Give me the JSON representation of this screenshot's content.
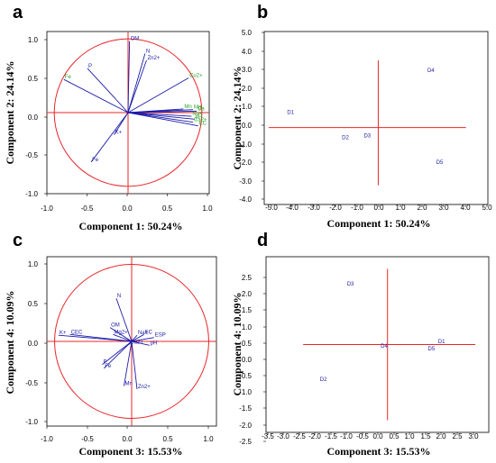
{
  "colors": {
    "circle": "#e8262a",
    "axes_cross": "#e8262a",
    "vector": "#1c1caa",
    "label_blue": "#1c1caa",
    "label_green": "#2aa52a",
    "frame": "#000000"
  },
  "chart_data": [
    {
      "panel": "a",
      "type": "scatter",
      "subtype": "loading-plot",
      "xlabel": "Component 1: 50.24%",
      "ylabel": "Component 2: 24.14%",
      "xlim": [
        -1.1,
        1.1
      ],
      "ylim": [
        -1.1,
        1.1
      ],
      "xticks": [
        "-1.0",
        "-0.5",
        "0.0",
        "0.5",
        "1.0"
      ],
      "yticks": [
        "1.0",
        "0.5",
        "0.0",
        "-0.5",
        "-1.0"
      ],
      "unit_circle": true,
      "points": [
        {
          "label": "OM",
          "x": 0.02,
          "y": 0.97,
          "color": "blue"
        },
        {
          "label": "N",
          "x": 0.23,
          "y": 0.8,
          "color": "blue"
        },
        {
          "label": "Zn2+",
          "x": 0.25,
          "y": 0.71,
          "color": "blue"
        },
        {
          "label": "P",
          "x": -0.55,
          "y": 0.6,
          "color": "blue"
        },
        {
          "label": "Fe",
          "x": -0.87,
          "y": 0.45,
          "color": "green"
        },
        {
          "label": "Cu2+",
          "x": 0.82,
          "y": 0.47,
          "color": "green"
        },
        {
          "label": "Mn",
          "x": 0.75,
          "y": 0.05,
          "color": "green"
        },
        {
          "label": "Mg",
          "x": 0.88,
          "y": 0.04,
          "color": "green"
        },
        {
          "label": "Ca",
          "x": 0.93,
          "y": 0.02,
          "color": "green"
        },
        {
          "label": "Na+",
          "x": 0.86,
          "y": -0.05,
          "color": "green"
        },
        {
          "label": "pH",
          "x": 0.9,
          "y": -0.09,
          "color": "green"
        },
        {
          "label": "Ca2+",
          "x": 0.88,
          "y": -0.13,
          "color": "green"
        },
        {
          "label": "EC",
          "x": 0.95,
          "y": -0.18,
          "color": "green"
        },
        {
          "label": "K+",
          "x": -0.19,
          "y": -0.3,
          "color": "blue"
        },
        {
          "label": "Fe",
          "x": -0.5,
          "y": -0.67,
          "color": "blue"
        }
      ]
    },
    {
      "panel": "b",
      "type": "scatter",
      "subtype": "score-plot",
      "xlabel": "Component 1: 50.24%",
      "ylabel": "Component 2: 24.14%",
      "xlim": [
        -5.2,
        5.0
      ],
      "ylim": [
        -4.0,
        5.0
      ],
      "xticks": [
        "-5.0",
        "-4.0",
        "-3.0",
        "-2.0",
        "-1.0",
        "0.0",
        "1.0",
        "2.0",
        "3.0",
        "4.0",
        "5.0"
      ],
      "yticks": [
        "5.0",
        "4.0",
        "3.0",
        "2.0",
        "1.0",
        "0.0",
        "-1.0",
        "-2.0",
        "-3.0",
        "-4.0"
      ],
      "points": [
        {
          "label": "D1",
          "x": -4.0,
          "y": 0.7
        },
        {
          "label": "D2",
          "x": -1.5,
          "y": -0.6
        },
        {
          "label": "D3",
          "x": -0.5,
          "y": -0.5
        },
        {
          "label": "D4",
          "x": 2.4,
          "y": 2.9
        },
        {
          "label": "D5",
          "x": 2.8,
          "y": -1.9
        }
      ]
    },
    {
      "panel": "c",
      "type": "scatter",
      "subtype": "loading-plot",
      "xlabel": "Component 3: 15.53%",
      "ylabel": "Component 4: 10.09%",
      "xlim": [
        -1.1,
        1.1
      ],
      "ylim": [
        -1.1,
        1.1
      ],
      "xticks": [
        "-1.0",
        "-0.5",
        "0.0",
        "0.5",
        "1.0"
      ],
      "yticks": [
        "1.0",
        "0.5",
        "0.0",
        "-0.5",
        "-1.0"
      ],
      "unit_circle": true,
      "points": [
        {
          "label": "K+",
          "x": -0.95,
          "y": 0.08,
          "color": "blue"
        },
        {
          "label": "CEC",
          "x": -0.8,
          "y": 0.09,
          "color": "blue"
        },
        {
          "label": "N",
          "x": -0.2,
          "y": 0.56,
          "color": "blue"
        },
        {
          "label": "OM",
          "x": -0.28,
          "y": 0.18,
          "color": "blue"
        },
        {
          "label": "Mg2+",
          "x": -0.24,
          "y": 0.09,
          "color": "blue"
        },
        {
          "label": "Na+",
          "x": 0.07,
          "y": 0.08,
          "color": "blue"
        },
        {
          "label": "EC",
          "x": 0.16,
          "y": 0.09,
          "color": "blue"
        },
        {
          "label": "ESP",
          "x": 0.29,
          "y": 0.05,
          "color": "blue"
        },
        {
          "label": "Cu2+",
          "x": -0.03,
          "y": -0.04,
          "color": "blue"
        },
        {
          "label": "pH",
          "x": 0.23,
          "y": -0.05,
          "color": "blue"
        },
        {
          "label": "P",
          "x": -0.38,
          "y": -0.3,
          "color": "blue"
        },
        {
          "label": "Fe",
          "x": -0.36,
          "y": -0.35,
          "color": "blue"
        },
        {
          "label": "Mn",
          "x": -0.1,
          "y": -0.58,
          "color": "blue"
        },
        {
          "label": "Zn2+",
          "x": 0.07,
          "y": -0.62,
          "color": "blue"
        }
      ]
    },
    {
      "panel": "d",
      "type": "scatter",
      "subtype": "score-plot",
      "xlabel": "Component 3: 15.53%",
      "ylabel": "Component 4: 10.09%",
      "xlim": [
        -3.6,
        3.0
      ],
      "ylim": [
        -2.9,
        2.9
      ],
      "xticks": [
        "-3.5",
        "-3.0",
        "-2.5",
        "-2.0",
        "-1.5",
        "-1.0",
        "-0.5",
        "0.0",
        "0.5",
        "1.0",
        "1.5",
        "2.0",
        "2.5",
        "3.0"
      ],
      "yticks": [
        "2.5",
        "2.0",
        "1.5",
        "1.0",
        "0.5",
        "0.0",
        "-0.5",
        "-1.0",
        "-1.5",
        "-2.0",
        "-2.5"
      ],
      "points": [
        {
          "label": "D1",
          "x": 1.6,
          "y": 0.05
        },
        {
          "label": "D2",
          "x": -1.9,
          "y": -1.2
        },
        {
          "label": "D3",
          "x": -1.1,
          "y": 1.95
        },
        {
          "label": "D4",
          "x": -0.1,
          "y": -0.1
        },
        {
          "label": "D5",
          "x": 1.3,
          "y": -0.2
        }
      ]
    }
  ]
}
